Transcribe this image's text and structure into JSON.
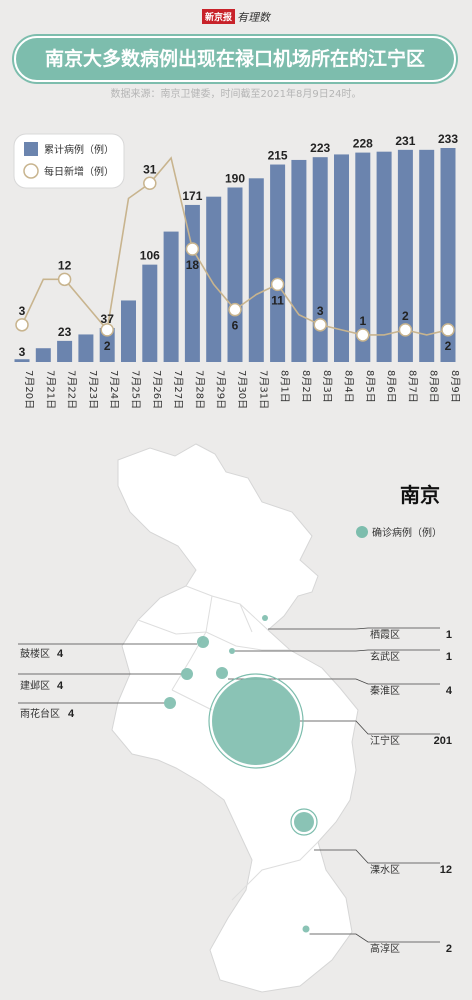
{
  "header": {
    "brand_box": "新京报",
    "brand_script": "有理数",
    "title": "南京大多数病例出现在禄口机场所在的江宁区",
    "source": "数据来源：南京卫健委，时间截至2021年8月9日24时。"
  },
  "colors": {
    "bar": "#6b84ae",
    "line": "#c8b48e",
    "accent": "#7dbdad",
    "map_fill": "#ffffff"
  },
  "chart_data": {
    "type": "bar",
    "categories": [
      "7月20日",
      "7月21日",
      "7月22日",
      "7月23日",
      "7月24日",
      "7月25日",
      "7月26日",
      "7月27日",
      "7月28日",
      "7月29日",
      "7月30日",
      "7月31日",
      "8月1日",
      "8月2日",
      "8月3日",
      "8月4日",
      "8月5日",
      "8月6日",
      "8月7日",
      "8月8日",
      "8月9日"
    ],
    "series": [
      {
        "name": "累计病例（例）",
        "type": "bar",
        "values": [
          3,
          15,
          23,
          30,
          37,
          67,
          106,
          142,
          171,
          180,
          190,
          200,
          215,
          220,
          223,
          226,
          228,
          229,
          231,
          231,
          233
        ],
        "labeled": [
          3,
          null,
          23,
          null,
          37,
          null,
          106,
          null,
          171,
          null,
          190,
          null,
          215,
          null,
          223,
          null,
          228,
          null,
          231,
          null,
          233
        ]
      },
      {
        "name": "每日新增（例）",
        "type": "line",
        "values": [
          3,
          12,
          12,
          7,
          2,
          28,
          31,
          36,
          18,
          11,
          6,
          9,
          11,
          5,
          3,
          2,
          1,
          1,
          2,
          1,
          2
        ],
        "labeled": [
          3,
          null,
          12,
          null,
          2,
          null,
          31,
          null,
          18,
          null,
          6,
          null,
          11,
          null,
          3,
          null,
          1,
          null,
          2,
          null,
          2
        ]
      }
    ],
    "ylim_bar": [
      0,
      233
    ],
    "ylim_line": [
      0,
      36
    ],
    "legend": "top-left",
    "grid": false
  },
  "map": {
    "city": "南京",
    "legend_label": "确诊病例（例）",
    "districts": [
      {
        "name": "栖霞区",
        "value": "1"
      },
      {
        "name": "玄武区",
        "value": "1"
      },
      {
        "name": "秦淮区",
        "value": "4"
      },
      {
        "name": "江宁区",
        "value": "201"
      },
      {
        "name": "溧水区",
        "value": "12"
      },
      {
        "name": "高淳区",
        "value": "2"
      },
      {
        "name": "鼓楼区",
        "value": "4"
      },
      {
        "name": "建邺区",
        "value": "4"
      },
      {
        "name": "雨花台区",
        "value": "4"
      }
    ]
  }
}
